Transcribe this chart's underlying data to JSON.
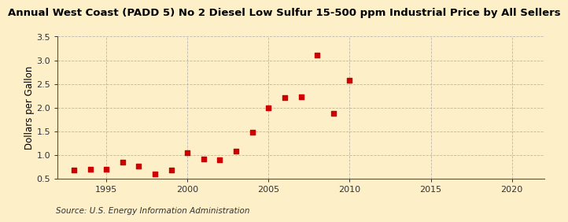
{
  "title": "Annual West Coast (PADD 5) No 2 Diesel Low Sulfur 15-500 ppm Industrial Price by All Sellers",
  "ylabel": "Dollars per Gallon",
  "source": "Source: U.S. Energy Information Administration",
  "background_color": "#fdefc8",
  "marker_color": "#cc0000",
  "years": [
    1993,
    1994,
    1995,
    1996,
    1997,
    1998,
    1999,
    2000,
    2001,
    2002,
    2003,
    2004,
    2005,
    2006,
    2007,
    2008,
    2009,
    2010
  ],
  "values": [
    0.68,
    0.7,
    0.7,
    0.85,
    0.77,
    0.6,
    0.68,
    1.04,
    0.91,
    0.89,
    1.08,
    1.47,
    2.0,
    2.21,
    2.22,
    3.1,
    1.87,
    2.58
  ],
  "xlim": [
    1992,
    2022
  ],
  "ylim": [
    0.5,
    3.5
  ],
  "xticks": [
    1995,
    2000,
    2005,
    2010,
    2015,
    2020
  ],
  "yticks": [
    0.5,
    1.0,
    1.5,
    2.0,
    2.5,
    3.0,
    3.5
  ],
  "grid_color": "#aaaaaa",
  "title_fontsize": 9.5,
  "label_fontsize": 8.5,
  "tick_fontsize": 8,
  "source_fontsize": 7.5
}
